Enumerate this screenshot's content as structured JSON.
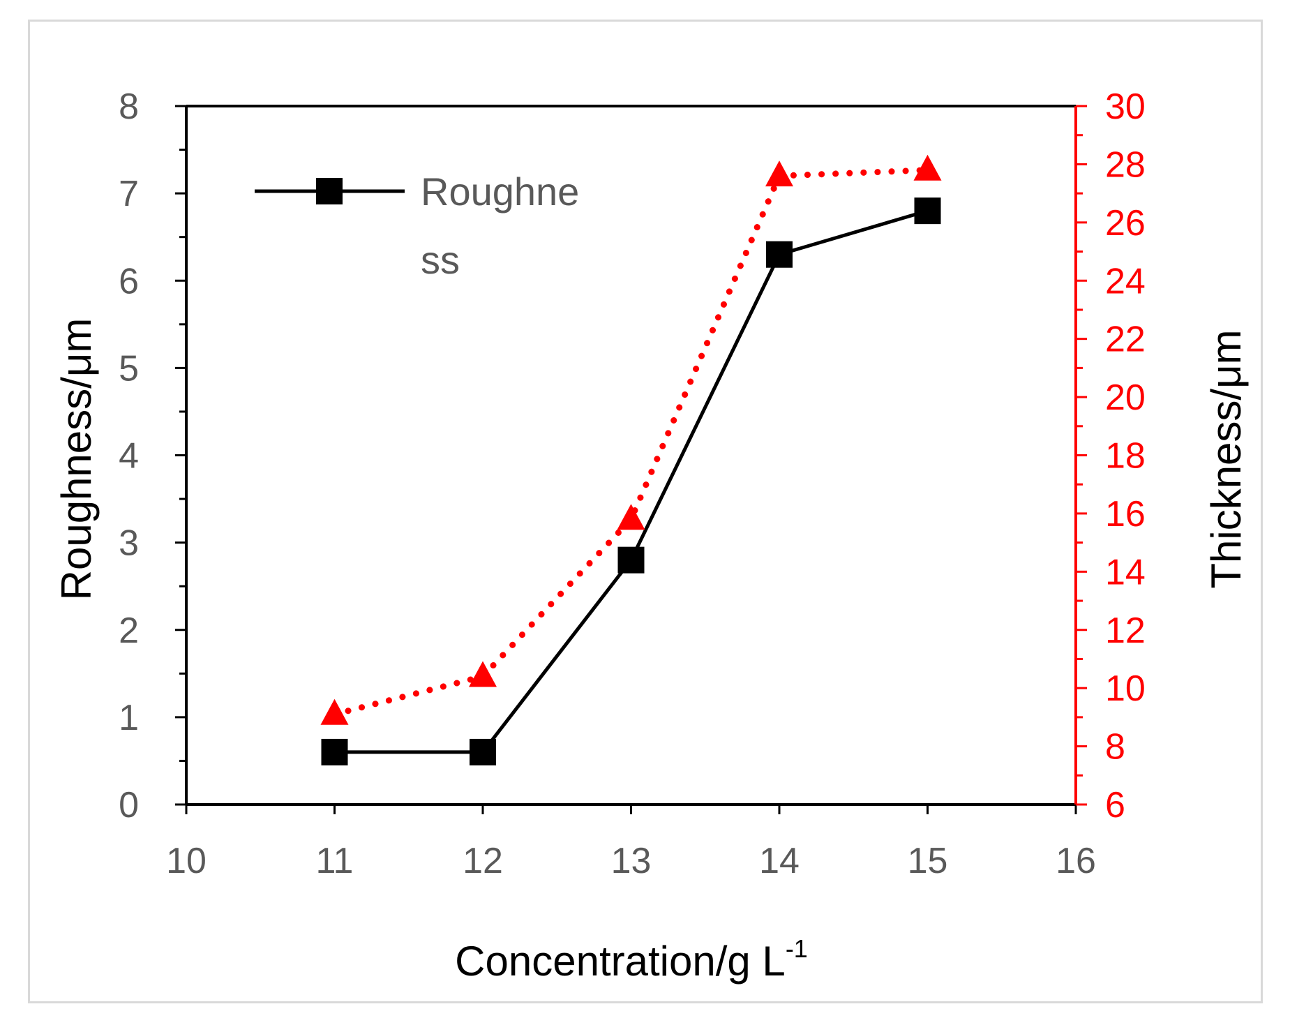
{
  "chart_data": {
    "type": "line",
    "title": "",
    "xlabel": "Concentration/g L",
    "xlabel_superscript": "-1",
    "ylabel": "Roughness/μm",
    "y2label": "Thickness/μm",
    "xlim": [
      10,
      16
    ],
    "ylim": [
      0,
      8
    ],
    "y2lim": [
      6,
      30
    ],
    "x_ticks": [
      10,
      11,
      12,
      13,
      14,
      15,
      16
    ],
    "y_ticks": [
      0,
      1,
      2,
      3,
      4,
      5,
      6,
      7,
      8
    ],
    "y2_ticks": [
      6,
      8,
      10,
      12,
      14,
      16,
      18,
      20,
      22,
      24,
      26,
      28,
      30
    ],
    "grid": false,
    "legend_position": "top-left",
    "series": [
      {
        "name": "Roughness",
        "legend_lines": [
          "Roughne",
          "ss"
        ],
        "axis": "left",
        "color": "#000000",
        "marker": "square",
        "line_style": "solid",
        "x": [
          11,
          12,
          13,
          14,
          15
        ],
        "values": [
          0.6,
          0.6,
          2.8,
          6.3,
          6.8
        ]
      },
      {
        "axis": "right",
        "color": "#ff0000",
        "marker": "triangle",
        "line_style": "dotted",
        "x": [
          11,
          12,
          13,
          14,
          15
        ],
        "values": [
          9.1,
          10.4,
          15.8,
          27.6,
          27.8
        ]
      }
    ]
  }
}
